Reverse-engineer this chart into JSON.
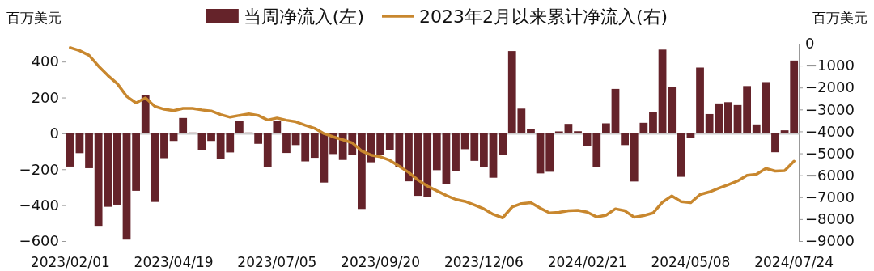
{
  "chart_data": {
    "type": "bar",
    "ylabel": "百万美元",
    "y2label": "百万美元",
    "legend": "top",
    "categories": [
      "2023/02/01",
      null,
      null,
      null,
      null,
      null,
      null,
      null,
      null,
      null,
      null,
      "2023/04/19",
      null,
      null,
      null,
      null,
      null,
      null,
      null,
      null,
      null,
      null,
      "2023/07/05",
      null,
      null,
      null,
      null,
      null,
      null,
      null,
      null,
      null,
      null,
      "2023/09/20",
      null,
      null,
      null,
      null,
      null,
      null,
      null,
      null,
      null,
      null,
      "2023/12/06",
      null,
      null,
      null,
      null,
      null,
      null,
      null,
      null,
      null,
      null,
      "2024/02/21",
      null,
      null,
      null,
      null,
      null,
      null,
      null,
      null,
      null,
      null,
      "2024/05/08",
      null,
      null,
      null,
      null,
      null,
      null,
      null,
      null,
      null,
      null,
      "2024/07/24"
    ],
    "ylim": [
      -600,
      500
    ],
    "yticks": [
      -600,
      -400,
      -200,
      0,
      200,
      400
    ],
    "y2lim": [
      -9000,
      0
    ],
    "y2ticks": [
      -9000,
      -8000,
      -7000,
      -6000,
      -5000,
      -4000,
      -3000,
      -2000,
      -1000,
      0
    ],
    "series": [
      {
        "name": "当周净流入(左)",
        "color": "#65232a",
        "values": [
          -185,
          -110,
          -194,
          -515,
          -409,
          -397,
          -592,
          -320,
          212,
          -382,
          -138,
          -42,
          86,
          5,
          -94,
          -42,
          -144,
          -106,
          71,
          5,
          -58,
          -189,
          71,
          -109,
          -65,
          -156,
          -136,
          -274,
          -115,
          -148,
          -121,
          -421,
          -161,
          -121,
          -95,
          -189,
          -267,
          -348,
          -355,
          -205,
          -280,
          -212,
          -88,
          -153,
          -186,
          -247,
          -120,
          459,
          138,
          26,
          -223,
          -214,
          11,
          53,
          12,
          -71,
          -189,
          56,
          248,
          -65,
          -268,
          59,
          117,
          467,
          259,
          -242,
          -27,
          367,
          108,
          167,
          174,
          158,
          264,
          50,
          286,
          -105,
          17,
          406
        ]
      },
      {
        "name": "2023年2月以来累计净流入(右)",
        "type": "line",
        "axis": "y2",
        "color": "#c8872e",
        "values": [
          -180,
          -320,
          -530,
          -1020,
          -1450,
          -1820,
          -2400,
          -2700,
          -2470,
          -2860,
          -2990,
          -3050,
          -2950,
          -2950,
          -3020,
          -3070,
          -3230,
          -3350,
          -3270,
          -3200,
          -3270,
          -3480,
          -3390,
          -3490,
          -3560,
          -3720,
          -3860,
          -4100,
          -4250,
          -4380,
          -4520,
          -4890,
          -5080,
          -5160,
          -5320,
          -5590,
          -5870,
          -6220,
          -6490,
          -6710,
          -6920,
          -7100,
          -7190,
          -7350,
          -7530,
          -7780,
          -7940,
          -7450,
          -7290,
          -7250,
          -7500,
          -7720,
          -7690,
          -7620,
          -7600,
          -7680,
          -7900,
          -7820,
          -7530,
          -7620,
          -7910,
          -7840,
          -7720,
          -7230,
          -6940,
          -7200,
          -7250,
          -6880,
          -6760,
          -6590,
          -6430,
          -6260,
          -6000,
          -5960,
          -5690,
          -5810,
          -5790,
          -5360
        ]
      }
    ]
  }
}
